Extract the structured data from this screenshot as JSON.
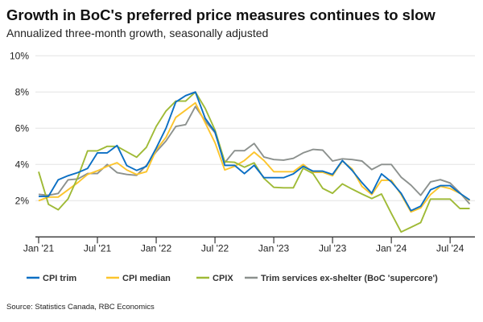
{
  "chart_data": {
    "type": "line",
    "title": "Growth in BoC's preferred price measures continues to slow",
    "subtitle": "Annualized three-month growth, seasonally adjusted",
    "xlabel": "",
    "ylabel": "",
    "x_start": "Jan 2021",
    "x_end": "Sep 2024",
    "x_frequency": "monthly",
    "x_ticks": [
      "Jan '21",
      "Jul '21",
      "Jan '22",
      "Jul '22",
      "Jan '23",
      "Jul '23",
      "Jan '24",
      "Jul '24"
    ],
    "y_ticks": [
      "2%",
      "4%",
      "6%",
      "8%",
      "10%"
    ],
    "ylim": [
      0,
      10
    ],
    "grid": "horizontal",
    "legend_position": "bottom",
    "series": [
      {
        "name": "CPI trim",
        "color": "#0b6fc4",
        "values": [
          2.24,
          2.24,
          3.15,
          3.38,
          3.55,
          3.78,
          4.64,
          4.64,
          5.05,
          3.94,
          3.67,
          3.9,
          4.9,
          6.0,
          7.45,
          7.8,
          8.0,
          6.55,
          5.8,
          3.95,
          3.95,
          3.5,
          3.95,
          3.27,
          3.27,
          3.27,
          3.48,
          3.9,
          3.63,
          3.63,
          3.45,
          4.22,
          3.67,
          3.0,
          2.41,
          3.48,
          3.04,
          2.41,
          1.45,
          1.7,
          2.6,
          2.83,
          2.83,
          2.41,
          2.04
        ]
      },
      {
        "name": "CPI median",
        "color": "#fcc52d",
        "values": [
          2.0,
          2.2,
          2.2,
          2.6,
          3.0,
          3.45,
          3.65,
          3.9,
          4.1,
          3.7,
          3.45,
          3.6,
          4.8,
          5.5,
          6.6,
          7.0,
          7.4,
          6.3,
          5.2,
          3.7,
          3.9,
          4.22,
          4.68,
          4.22,
          3.6,
          3.6,
          3.6,
          4.0,
          3.57,
          3.57,
          3.38,
          4.19,
          3.75,
          2.79,
          2.34,
          3.13,
          3.13,
          2.34,
          1.38,
          1.6,
          2.34,
          2.79,
          2.67,
          2.41,
          2.01
        ]
      },
      {
        "name": "CPIX",
        "color": "#9fba36",
        "values": [
          3.6,
          1.8,
          1.5,
          2.1,
          3.3,
          4.75,
          4.75,
          5.0,
          5.0,
          4.7,
          4.4,
          4.95,
          6.1,
          6.95,
          7.5,
          7.5,
          8.0,
          7.1,
          5.9,
          4.15,
          4.12,
          3.85,
          4.09,
          3.23,
          2.74,
          2.71,
          2.71,
          3.79,
          3.5,
          2.68,
          2.41,
          2.93,
          2.64,
          2.37,
          2.12,
          2.37,
          1.3,
          0.27,
          0.53,
          0.79,
          2.09,
          2.09,
          2.09,
          1.57,
          1.57
        ]
      },
      {
        "name": "Trim services ex-shelter (BoC 'supercore')",
        "color": "#8c918e",
        "values": [
          2.35,
          2.3,
          2.4,
          3.15,
          3.2,
          3.5,
          3.5,
          4.0,
          3.55,
          3.45,
          3.4,
          3.95,
          4.7,
          5.3,
          6.1,
          6.2,
          7.2,
          6.4,
          5.75,
          4.1,
          4.76,
          4.76,
          5.16,
          4.41,
          4.27,
          4.24,
          4.34,
          4.64,
          4.83,
          4.79,
          4.19,
          4.31,
          4.27,
          4.19,
          3.72,
          4.0,
          4.0,
          3.3,
          2.86,
          2.3,
          3.04,
          3.16,
          2.98,
          2.44,
          1.82
        ]
      }
    ],
    "source": "Source: Statistics Canada, RBC Economics"
  }
}
